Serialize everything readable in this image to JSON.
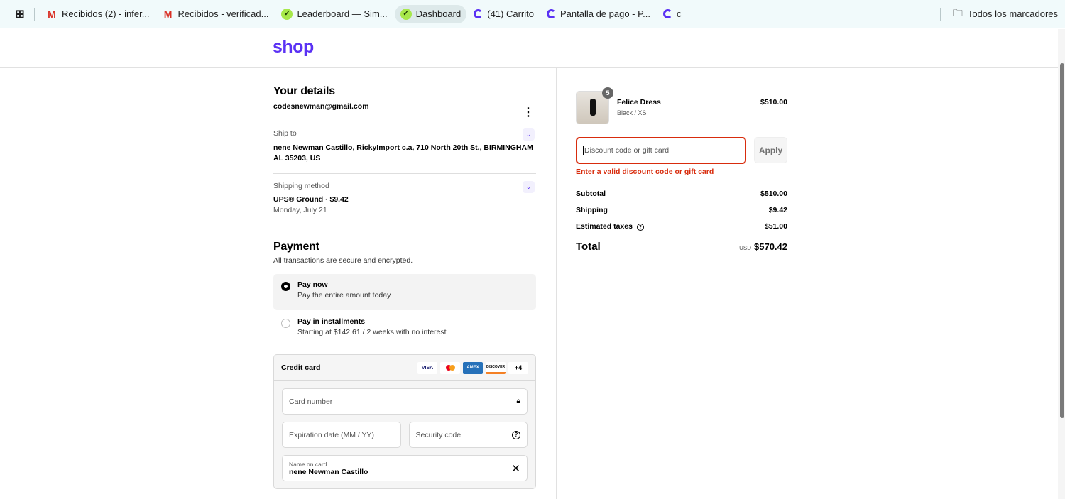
{
  "bookmarks": [
    {
      "label": "Recibidos (2) - infer...",
      "icon": "gmail-icon"
    },
    {
      "label": "Recibidos - verificad...",
      "icon": "gmail-icon"
    },
    {
      "label": "Leaderboard — Sim...",
      "icon": "leaderboard-icon"
    },
    {
      "label": "Dashboard",
      "icon": "leaderboard-icon",
      "active": true
    },
    {
      "label": "(41) Carrito",
      "icon": "shop-icon"
    },
    {
      "label": "Pantalla de pago - P...",
      "icon": "shop-icon"
    },
    {
      "label": "c",
      "icon": "shop-icon"
    }
  ],
  "all_bookmarks": "Todos los marcadores",
  "brand": {
    "logo": "shop",
    "color": "#5a31f4"
  },
  "details": {
    "title": "Your details",
    "email": "codesnewman@gmail.com",
    "ship_to_label": "Ship to",
    "ship_to": "nene Newman Castillo, RickyImport c.a, 710 North 20th St., BIRMINGHAM AL 35203, US",
    "shipping_label": "Shipping method",
    "shipping": "UPS® Ground · $9.42",
    "shipping_date": "Monday, July 21"
  },
  "payment": {
    "title": "Payment",
    "subtitle": "All transactions are secure and encrypted.",
    "options": [
      {
        "title": "Pay now",
        "desc": "Pay the entire amount today",
        "selected": true
      },
      {
        "title": "Pay in installments",
        "desc": "Starting at $142.61 / 2 weeks with no interest",
        "selected": false
      }
    ],
    "credit_card": "Credit card",
    "cards": [
      "VISA",
      "MC",
      "AMEX",
      "DISCOVER",
      "+4"
    ],
    "card_number": "Card number",
    "expiration": "Expiration date (MM / YY)",
    "security": "Security code",
    "name_label": "Name on card",
    "name_value": "nene Newman Castillo"
  },
  "order": {
    "item": {
      "name": "Felice Dress",
      "variant": "Black / XS",
      "price": "$510.00",
      "quantity": "5"
    },
    "discount_placeholder": "Discount code or gift card",
    "apply": "Apply",
    "error": "Enter a valid discount code or gift card",
    "error_color": "#d82c0d",
    "subtotal_label": "Subtotal",
    "subtotal": "$510.00",
    "shipping_label": "Shipping",
    "shipping": "$9.42",
    "taxes_label": "Estimated taxes",
    "taxes": "$51.00",
    "total_label": "Total",
    "currency": "USD",
    "total": "$570.42"
  }
}
